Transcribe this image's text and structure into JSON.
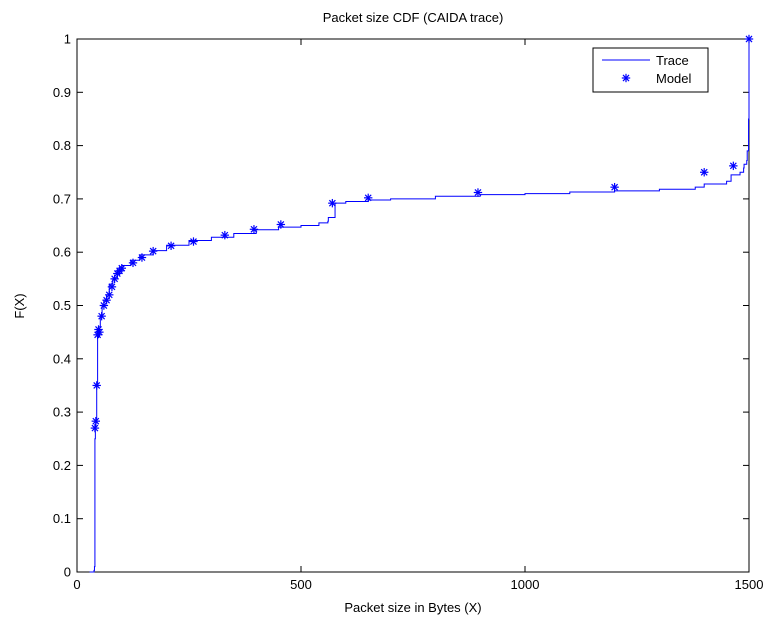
{
  "chart_data": {
    "type": "line",
    "title": "Packet size CDF (CAIDA trace)",
    "xlabel": "Packet size in Bytes (X)",
    "ylabel": "F(X)",
    "xlim": [
      0,
      1500
    ],
    "ylim": [
      0,
      1
    ],
    "x_ticks": [
      0,
      500,
      1000,
      1500
    ],
    "x_tick_labels": [
      "0",
      "500",
      "1000",
      "1500"
    ],
    "y_ticks": [
      0,
      0.1,
      0.2,
      0.3,
      0.4,
      0.5,
      0.6,
      0.7,
      0.8,
      0.9,
      1
    ],
    "y_tick_labels": [
      "0",
      "0.1",
      "0.2",
      "0.3",
      "0.4",
      "0.5",
      "0.6",
      "0.7",
      "0.8",
      "0.9",
      "1"
    ],
    "grid": false,
    "legend_position": "top-right",
    "colors": {
      "series": "#0000ff",
      "axes": "#000000"
    },
    "series": [
      {
        "name": "Trace",
        "style": "line",
        "x": [
          28,
          38,
          39,
          40,
          41,
          42,
          44,
          46,
          48,
          52,
          56,
          60,
          66,
          72,
          80,
          90,
          100,
          120,
          140,
          170,
          200,
          250,
          300,
          350,
          400,
          450,
          500,
          540,
          560,
          561,
          575,
          576,
          600,
          650,
          700,
          800,
          900,
          1000,
          1100,
          1200,
          1300,
          1380,
          1400,
          1450,
          1460,
          1480,
          1488,
          1489,
          1495,
          1496,
          1499,
          1500
        ],
        "y": [
          0,
          0.003,
          0.01,
          0.25,
          0.27,
          0.28,
          0.35,
          0.44,
          0.46,
          0.48,
          0.5,
          0.51,
          0.52,
          0.54,
          0.55,
          0.565,
          0.575,
          0.585,
          0.595,
          0.603,
          0.613,
          0.622,
          0.628,
          0.635,
          0.642,
          0.647,
          0.65,
          0.655,
          0.658,
          0.665,
          0.665,
          0.692,
          0.695,
          0.698,
          0.7,
          0.705,
          0.708,
          0.71,
          0.713,
          0.715,
          0.718,
          0.722,
          0.728,
          0.733,
          0.745,
          0.75,
          0.758,
          0.765,
          0.772,
          0.79,
          0.85,
          1.0
        ]
      },
      {
        "name": "Model",
        "style": "marker",
        "marker": "*",
        "x": [
          40,
          42,
          44,
          46,
          48,
          50,
          55,
          60,
          66,
          72,
          78,
          84,
          90,
          95,
          100,
          125,
          145,
          170,
          210,
          260,
          330,
          395,
          455,
          570,
          650,
          895,
          1200,
          1400,
          1465,
          1500
        ],
        "y": [
          0.27,
          0.283,
          0.35,
          0.445,
          0.455,
          0.45,
          0.48,
          0.5,
          0.51,
          0.52,
          0.535,
          0.55,
          0.56,
          0.565,
          0.57,
          0.58,
          0.59,
          0.602,
          0.612,
          0.62,
          0.632,
          0.643,
          0.652,
          0.692,
          0.702,
          0.712,
          0.722,
          0.75,
          0.762,
          1.0
        ]
      }
    ]
  }
}
